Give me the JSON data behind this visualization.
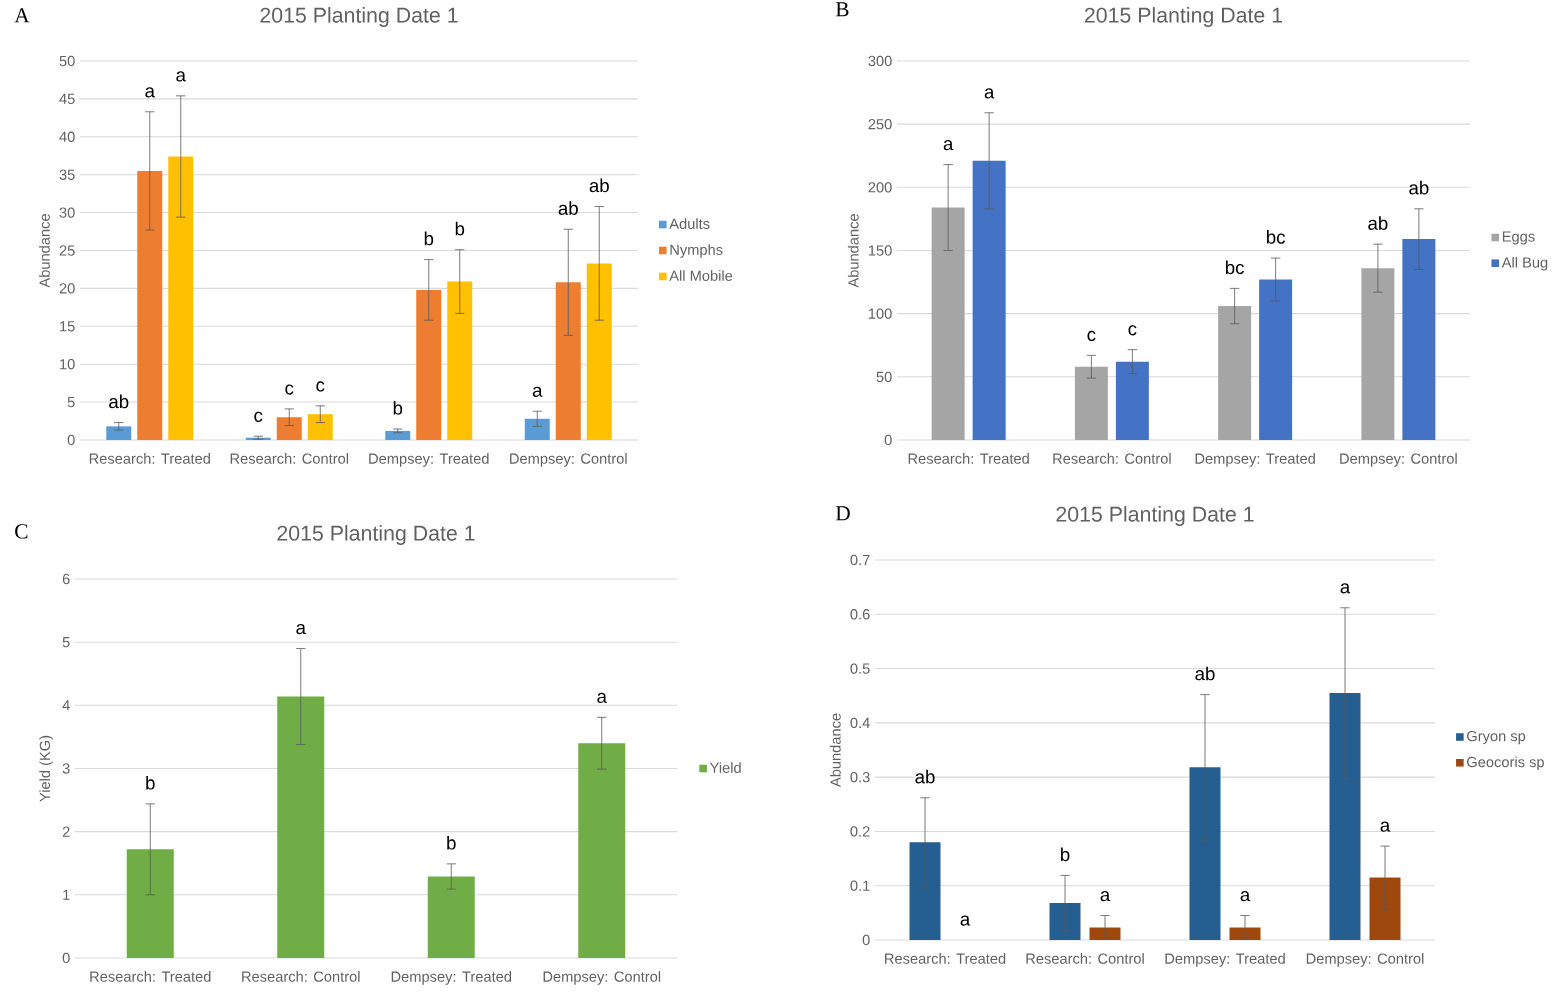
{
  "chart_data": [
    {
      "type": "bar",
      "title": "2015 Planting Date 1",
      "ylabel": "Abundance",
      "categories": [
        "Research: Treated",
        "Research: Control",
        "Dempsey: Treated",
        "Dempsey: Control"
      ],
      "series": [
        {
          "name": "Adults",
          "color": "#5b9bd5",
          "values": [
            1.8,
            0.3,
            1.2,
            2.8
          ],
          "errors": [
            0.5,
            0.2,
            0.25,
            1.0
          ]
        },
        {
          "name": "Nymphs",
          "color": "#ed7d31",
          "values": [
            35.5,
            3.0,
            19.8,
            20.8
          ],
          "errors": [
            7.8,
            1.1,
            4.0,
            7.0
          ]
        },
        {
          "name": "All Mobile",
          "color": "#ffc000",
          "values": [
            37.4,
            3.4,
            20.9,
            23.3
          ],
          "errors": [
            8.0,
            1.1,
            4.2,
            7.5
          ]
        }
      ],
      "ylim": [
        0,
        50
      ],
      "yticks": [
        0,
        5,
        10,
        15,
        20,
        25,
        30,
        35,
        40,
        45,
        50
      ],
      "grid": "y",
      "legend": "right",
      "annotations": [
        "A",
        "ab",
        "a",
        "a",
        "c",
        "c",
        "c",
        "b",
        "b",
        "b",
        "a",
        "ab",
        "ab"
      ]
    },
    {
      "type": "bar",
      "title": "2015 Planting Date 1",
      "ylabel": "Abundance",
      "categories": [
        "Research: Treated",
        "Research: Control",
        "Dempsey: Treated",
        "Dempsey: Control"
      ],
      "series": [
        {
          "name": "Eggs",
          "color": "#a5a5a5",
          "values": [
            184,
            58,
            106,
            136
          ],
          "errors": [
            34,
            9,
            14,
            19
          ]
        },
        {
          "name": "All Bug",
          "color": "#4472c4",
          "values": [
            221,
            62,
            127,
            159
          ],
          "errors": [
            38,
            9.5,
            17,
            24
          ]
        }
      ],
      "ylim": [
        0,
        300
      ],
      "yticks": [
        0,
        50,
        100,
        150,
        200,
        250,
        300
      ],
      "grid": "y",
      "legend": "right",
      "annotations": [
        "B",
        "a",
        "a",
        "c",
        "c",
        "bc",
        "bc",
        "ab",
        "ab"
      ]
    },
    {
      "type": "bar",
      "title": "2015 Planting Date 1",
      "ylabel": "Yield (KG)",
      "categories": [
        "Research: Treated",
        "Research: Control",
        "Dempsey: Treated",
        "Dempsey: Control"
      ],
      "series": [
        {
          "name": "Yield",
          "color": "#70ad47",
          "values": [
            1.72,
            4.14,
            1.29,
            3.4
          ],
          "errors": [
            0.72,
            0.76,
            0.2,
            0.41
          ]
        }
      ],
      "ylim": [
        0,
        6
      ],
      "yticks": [
        0,
        1,
        2,
        3,
        4,
        5,
        6
      ],
      "grid": "y",
      "legend": "right",
      "annotations": [
        "C",
        "b",
        "a",
        "b",
        "a"
      ]
    },
    {
      "type": "bar",
      "title": "2015 Planting Date 1",
      "ylabel": "Abundance",
      "categories": [
        "Research: Treated",
        "Research: Control",
        "Dempsey: Treated",
        "Dempsey: Control"
      ],
      "series": [
        {
          "name": "Gryon sp",
          "color": "#255e91",
          "values": [
            0.18,
            0.068,
            0.318,
            0.455
          ],
          "errors": [
            0.082,
            0.051,
            0.134,
            0.157
          ]
        },
        {
          "name": "Geocoris sp",
          "color": "#9e480e",
          "values": [
            0,
            0.023,
            0.023,
            0.115
          ],
          "errors": [
            null,
            0.022,
            0.022,
            0.058
          ]
        }
      ],
      "ylim": [
        0,
        0.7
      ],
      "yticks": [
        0,
        0.1,
        0.2,
        0.3,
        0.4,
        0.5,
        0.6,
        0.7
      ],
      "grid": "y",
      "legend": "right",
      "annotations": [
        "D",
        "ab",
        "a",
        "b",
        "a",
        "ab",
        "a",
        "a",
        "a"
      ]
    }
  ]
}
